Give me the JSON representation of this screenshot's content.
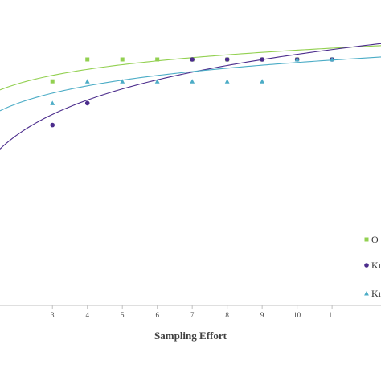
{
  "chart_data": {
    "type": "scatter",
    "xlabel": "Sampling Effort",
    "ylabel": "",
    "title": "",
    "x_ticks": [
      3,
      4,
      5,
      6,
      7,
      8,
      9,
      10,
      11
    ],
    "xlim": [
      1.5,
      12.4
    ],
    "ylim": [
      0.0,
      1.0
    ],
    "grid": false,
    "legend_position": "right",
    "series": [
      {
        "name": "O",
        "color": "#92d050",
        "marker": "square",
        "points": [
          [
            3,
            0.82
          ],
          [
            4,
            0.9
          ],
          [
            5,
            0.9
          ],
          [
            6,
            0.9
          ],
          [
            7,
            0.9
          ],
          [
            8,
            0.9
          ],
          [
            9,
            0.9
          ],
          [
            10,
            0.9
          ],
          [
            11,
            0.9
          ]
        ],
        "trend": [
          0.7576,
          0.0766
        ]
      },
      {
        "name": "Kı",
        "color": "#4b2c8c",
        "marker": "circle",
        "points": [
          [
            3,
            0.66
          ],
          [
            4,
            0.74
          ],
          [
            7,
            0.9
          ],
          [
            8,
            0.9
          ],
          [
            9,
            0.9
          ],
          [
            10,
            0.9
          ],
          [
            11,
            0.9
          ]
        ],
        "trend": [
          0.4983,
          0.1826
        ]
      },
      {
        "name": "Kı",
        "color": "#4bacc6",
        "marker": "triangle",
        "points": [
          [
            3,
            0.74
          ],
          [
            4,
            0.82
          ],
          [
            5,
            0.82
          ],
          [
            6,
            0.82
          ],
          [
            7,
            0.82
          ],
          [
            8,
            0.82
          ],
          [
            9,
            0.82
          ],
          [
            10,
            0.9
          ],
          [
            11,
            0.9
          ]
        ],
        "trend": [
          0.6745,
          0.0931
        ]
      }
    ]
  }
}
